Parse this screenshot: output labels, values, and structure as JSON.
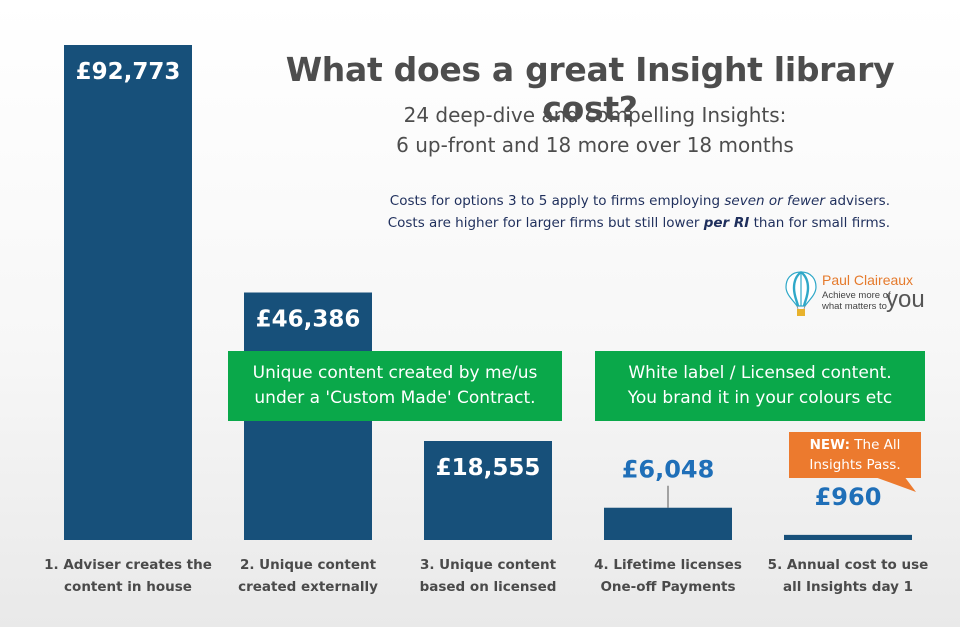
{
  "title": "What does a great Insight library cost?",
  "subtitle": {
    "line1": "24 deep-dive and compelling Insights:",
    "line2": "6 up-front and 18 more over 18 months"
  },
  "note": {
    "line1_a": "Costs for options 3 to 5 apply to firms employing ",
    "line1_em": "seven or fewer",
    "line1_b": " advisers.",
    "line2_a": "Costs are higher for larger firms but still lower ",
    "line2_em": "per RI",
    "line2_b": " than for small firms."
  },
  "logo": {
    "name": "Paul Claireaux",
    "tag_line1": "Achieve more of",
    "tag_line2": "what matters to",
    "tag_word": "you",
    "icon": "hot-air-balloon-icon"
  },
  "groups": {
    "custom_line1": "Unique content created by me/us",
    "custom_line2": "under a 'Custom Made' Contract.",
    "licensed_line1": "White label / Licensed content.",
    "licensed_line2": "You brand it in your colours etc"
  },
  "callout": {
    "bold": "NEW:",
    "rest": " The All",
    "line2": "Insights Pass."
  },
  "colors": {
    "bar": "#17507a",
    "value_in_bar": "#ffffff",
    "value_outside": "#1f6fb8",
    "group_box": "#0aa84a",
    "callout": "#ec7a2e",
    "title": "#4d4d4d",
    "note": "#1f2f5c"
  },
  "chart_data": {
    "type": "bar",
    "categories": [
      "1. Adviser creates the content in house",
      "2. Unique content created externally",
      "3. Unique content based on licensed",
      "4. Lifetime licenses One-off Payments",
      "5. Annual cost to use all Insights day 1"
    ],
    "category_lines": [
      [
        "1. Adviser creates the",
        "content in house"
      ],
      [
        "2. Unique content",
        "created externally"
      ],
      [
        "3. Unique content",
        "based on licensed"
      ],
      [
        "4. Lifetime licenses",
        "One-off Payments"
      ],
      [
        "5. Annual cost to use",
        "all Insights day 1"
      ]
    ],
    "values": [
      92773,
      46386,
      18555,
      6048,
      960
    ],
    "value_labels": [
      "£92,773",
      "£46,386",
      "£18,555",
      "£6,048",
      "£960"
    ],
    "title": "What does a great Insight library cost?",
    "xlabel": "",
    "ylabel": "",
    "ylim": [
      0,
      92773
    ],
    "grid": false,
    "legend": "none"
  }
}
